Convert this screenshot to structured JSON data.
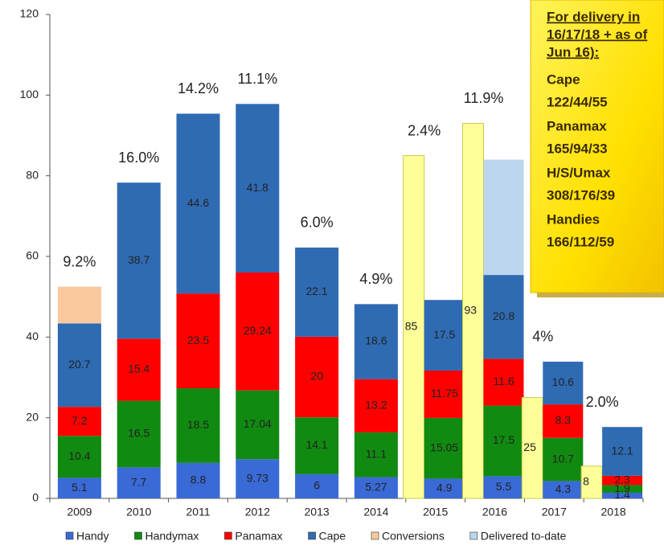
{
  "chart_data": {
    "type": "stacked_bar",
    "categories": [
      "2009",
      "2010",
      "2011",
      "2012",
      "2013",
      "2014",
      "2015",
      "2016",
      "2017",
      "2018"
    ],
    "series": [
      {
        "name": "Handy",
        "color": "#3a6ad6",
        "labels": true,
        "values": [
          5.1,
          7.7,
          8.8,
          9.73,
          6,
          5.27,
          4.9,
          5.5,
          4.3,
          1.4
        ]
      },
      {
        "name": "Handymax",
        "color": "#118a11",
        "labels": true,
        "values": [
          10.4,
          16.5,
          18.5,
          17.04,
          14.1,
          11.1,
          15.05,
          17.5,
          10.7,
          1.9
        ]
      },
      {
        "name": "Panamax",
        "color": "#ff0000",
        "labels": true,
        "values": [
          7.2,
          15.4,
          23.5,
          29.24,
          20,
          13.2,
          11.75,
          11.6,
          8.3,
          2.3
        ]
      },
      {
        "name": "Cape",
        "color": "#2f6bb3",
        "labels": true,
        "values": [
          20.7,
          38.7,
          44.6,
          41.8,
          22.1,
          18.6,
          17.5,
          20.8,
          10.6,
          12.1
        ]
      },
      {
        "name": "Conversions",
        "color": "#f9c99d",
        "labels": false,
        "values": [
          9.1,
          null,
          null,
          null,
          null,
          null,
          null,
          null,
          null,
          null
        ]
      },
      {
        "name": "Delivered to-date",
        "color": "#bcd6ee",
        "labels": false,
        "values": [
          null,
          null,
          null,
          null,
          null,
          null,
          null,
          28.6,
          null,
          null
        ]
      }
    ],
    "side_bar": {
      "color": "#ffff99",
      "values": [
        null,
        null,
        null,
        null,
        null,
        null,
        85,
        93,
        25,
        8
      ]
    },
    "growth_labels": [
      "9.2%",
      "16.0%",
      "14.2%",
      "11.1%",
      "6.0%",
      "4.9%",
      "2.4%",
      "11.9%",
      "4%",
      "2.0%"
    ],
    "ylim": [
      0,
      120
    ],
    "yticks": [
      0,
      20,
      40,
      60,
      80,
      100,
      120
    ],
    "callout": {
      "title_lines": [
        "For delivery in",
        "16/17/18 + as of",
        "Jun 16):"
      ],
      "items": [
        {
          "name": "Cape",
          "value": "122/44/55"
        },
        {
          "name": "Panamax",
          "value": "165/94/33"
        },
        {
          "name": "H/S/Umax",
          "value": "308/176/39"
        },
        {
          "name": "Handies",
          "value": "166/112/59"
        }
      ]
    }
  }
}
